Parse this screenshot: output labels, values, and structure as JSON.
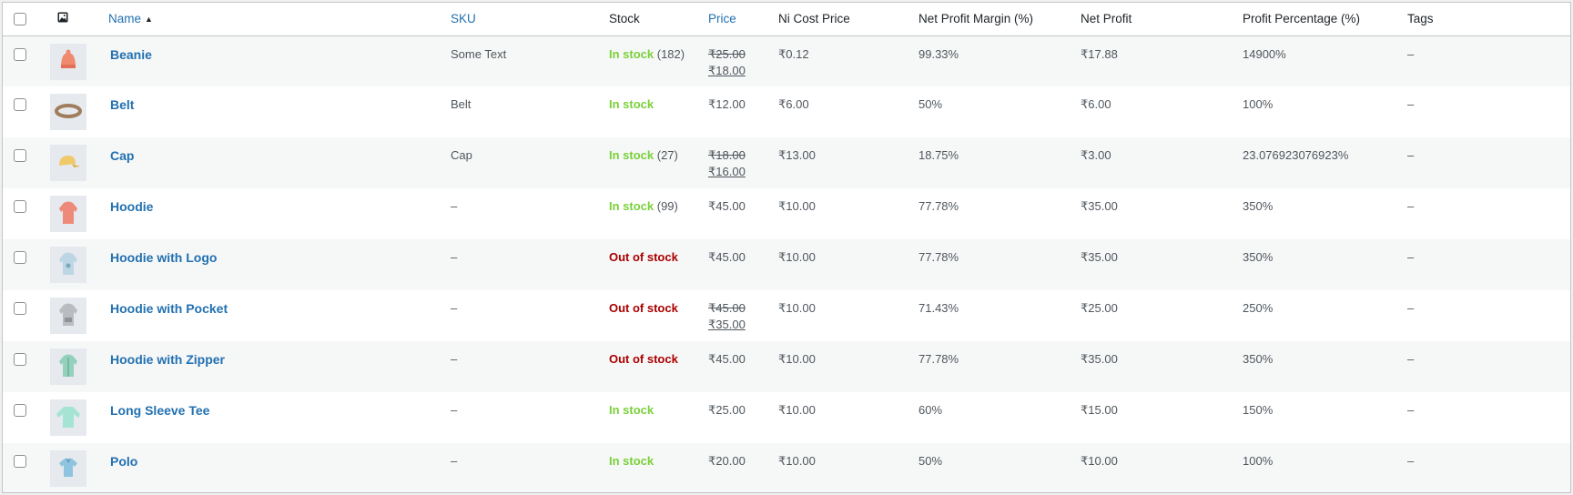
{
  "columns": {
    "name": "Name",
    "sku": "SKU",
    "stock": "Stock",
    "price": "Price",
    "ni_cost": "Ni Cost Price",
    "margin": "Net Profit Margin (%)",
    "net_profit": "Net Profit",
    "profit_pct": "Profit Percentage (%)",
    "tags": "Tags"
  },
  "sort_indicator": "▲",
  "colors": {
    "link": "#2271b1",
    "in_stock": "#7ad03a",
    "out_of_stock": "#aa0000",
    "row_alt": "#f6f7f7"
  },
  "rows": [
    {
      "name": "Beanie",
      "image_icon": "beanie-icon",
      "sku": "Some Text",
      "stock_status": "In stock",
      "stock_count": " (182)",
      "price_regular": "₹25.00",
      "price_sale": "₹18.00",
      "ni_cost": "₹0.12",
      "margin": "99.33%",
      "net_profit": "₹17.88",
      "profit_pct": "14900%",
      "tags": "–"
    },
    {
      "name": "Belt",
      "image_icon": "belt-icon",
      "sku": "Belt",
      "stock_status": "In stock",
      "stock_count": "",
      "price_regular": "₹12.00",
      "price_sale": "",
      "ni_cost": "₹6.00",
      "margin": "50%",
      "net_profit": "₹6.00",
      "profit_pct": "100%",
      "tags": "–"
    },
    {
      "name": "Cap",
      "image_icon": "cap-icon",
      "sku": "Cap",
      "stock_status": "In stock",
      "stock_count": " (27)",
      "price_regular": "₹18.00",
      "price_sale": "₹16.00",
      "ni_cost": "₹13.00",
      "margin": "18.75%",
      "net_profit": "₹3.00",
      "profit_pct": "23.076923076923%",
      "tags": "–"
    },
    {
      "name": "Hoodie",
      "image_icon": "hoodie-icon",
      "sku": "–",
      "stock_status": "In stock",
      "stock_count": " (99)",
      "price_regular": "₹45.00",
      "price_sale": "",
      "ni_cost": "₹10.00",
      "margin": "77.78%",
      "net_profit": "₹35.00",
      "profit_pct": "350%",
      "tags": "–"
    },
    {
      "name": "Hoodie with Logo",
      "image_icon": "hoodie-logo-icon",
      "sku": "–",
      "stock_status": "Out of stock",
      "stock_count": "",
      "price_regular": "₹45.00",
      "price_sale": "",
      "ni_cost": "₹10.00",
      "margin": "77.78%",
      "net_profit": "₹35.00",
      "profit_pct": "350%",
      "tags": "–"
    },
    {
      "name": "Hoodie with Pocket",
      "image_icon": "hoodie-pocket-icon",
      "sku": "–",
      "stock_status": "Out of stock",
      "stock_count": "",
      "price_regular": "₹45.00",
      "price_sale": "₹35.00",
      "ni_cost": "₹10.00",
      "margin": "71.43%",
      "net_profit": "₹25.00",
      "profit_pct": "250%",
      "tags": "–"
    },
    {
      "name": "Hoodie with Zipper",
      "image_icon": "hoodie-zipper-icon",
      "sku": "–",
      "stock_status": "Out of stock",
      "stock_count": "",
      "price_regular": "₹45.00",
      "price_sale": "",
      "ni_cost": "₹10.00",
      "margin": "77.78%",
      "net_profit": "₹35.00",
      "profit_pct": "350%",
      "tags": "–"
    },
    {
      "name": "Long Sleeve Tee",
      "image_icon": "long-sleeve-tee-icon",
      "sku": "–",
      "stock_status": "In stock",
      "stock_count": "",
      "price_regular": "₹25.00",
      "price_sale": "",
      "ni_cost": "₹10.00",
      "margin": "60%",
      "net_profit": "₹15.00",
      "profit_pct": "150%",
      "tags": "–"
    },
    {
      "name": "Polo",
      "image_icon": "polo-icon",
      "sku": "–",
      "stock_status": "In stock",
      "stock_count": "",
      "price_regular": "₹20.00",
      "price_sale": "",
      "ni_cost": "₹10.00",
      "margin": "50%",
      "net_profit": "₹10.00",
      "profit_pct": "100%",
      "tags": "–"
    }
  ]
}
